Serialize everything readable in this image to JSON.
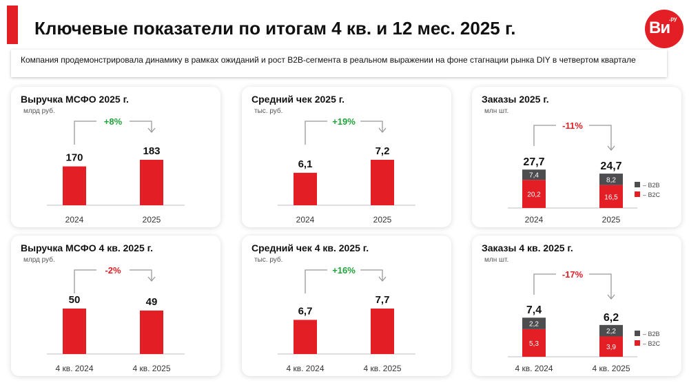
{
  "header": {
    "title": "Ключевые показатели по итогам 4 кв. и 12 мес. 2025 г.",
    "logo_text": "Ви",
    "logo_sup": ".ру",
    "accent_color": "#e31e24"
  },
  "subtitle": "Компания продемонстрировала динамику в рамках ожиданий и рост B2B-сегмента в реальном выражении на фоне стагнации рынка DIY в четвертом квартале",
  "colors": {
    "bar": "#e31e24",
    "b2b": "#4d4d4f",
    "positive": "#1fa33a",
    "negative": "#e31e24",
    "axis": "#bfbfbf",
    "arrow": "#999999"
  },
  "chart_data": [
    {
      "type": "bar",
      "title": "Выручка МСФО 2025 г.",
      "unit": "млрд руб.",
      "categories": [
        "2024",
        "2025"
      ],
      "values": [
        170,
        183
      ],
      "value_labels": [
        "170",
        "183"
      ],
      "change": "+8%",
      "change_sign": "positive"
    },
    {
      "type": "bar",
      "title": "Средний чек 2025 г.",
      "unit": "тыс. руб.",
      "categories": [
        "2024",
        "2025"
      ],
      "values": [
        6.1,
        7.2
      ],
      "value_labels": [
        "6,1",
        "7,2"
      ],
      "change": "+19%",
      "change_sign": "positive"
    },
    {
      "type": "bar",
      "stacked": true,
      "title": "Заказы 2025 г.",
      "unit": "млн шт.",
      "categories": [
        "2024",
        "2025"
      ],
      "totals": [
        27.7,
        24.7
      ],
      "total_labels": [
        "27,7",
        "24,7"
      ],
      "series": [
        {
          "name": "– B2C",
          "values": [
            20.2,
            16.5
          ],
          "labels": [
            "20,2",
            "16,5"
          ]
        },
        {
          "name": "– B2B",
          "values": [
            7.4,
            8.2
          ],
          "labels": [
            "7,4",
            "8,2"
          ]
        }
      ],
      "change": "-11%",
      "change_sign": "negative"
    },
    {
      "type": "bar",
      "title": "Выручка МСФО 4 кв. 2025 г.",
      "unit": "млрд руб.",
      "categories": [
        "4 кв. 2024",
        "4 кв. 2025"
      ],
      "values": [
        50,
        49
      ],
      "value_labels": [
        "50",
        "49"
      ],
      "change": "-2%",
      "change_sign": "negative"
    },
    {
      "type": "bar",
      "title": "Средний чек 4 кв. 2025 г.",
      "unit": "тыс. руб.",
      "categories": [
        "4 кв. 2024",
        "4 кв. 2025"
      ],
      "values": [
        6.7,
        7.7
      ],
      "value_labels": [
        "6,7",
        "7,7"
      ],
      "change": "+16%",
      "change_sign": "positive"
    },
    {
      "type": "bar",
      "stacked": true,
      "title": "Заказы 4 кв. 2025 г.",
      "unit": "млн шт.",
      "categories": [
        "4 кв. 2024",
        "4 кв. 2025"
      ],
      "totals": [
        7.4,
        6.2
      ],
      "total_labels": [
        "7,4",
        "6,2"
      ],
      "series": [
        {
          "name": "– B2C",
          "values": [
            5.3,
            3.9
          ],
          "labels": [
            "5,3",
            "3,9"
          ]
        },
        {
          "name": "– B2B",
          "values": [
            2.2,
            2.2
          ],
          "labels": [
            "2,2",
            "2,2"
          ]
        }
      ],
      "change": "-17%",
      "change_sign": "negative"
    }
  ]
}
